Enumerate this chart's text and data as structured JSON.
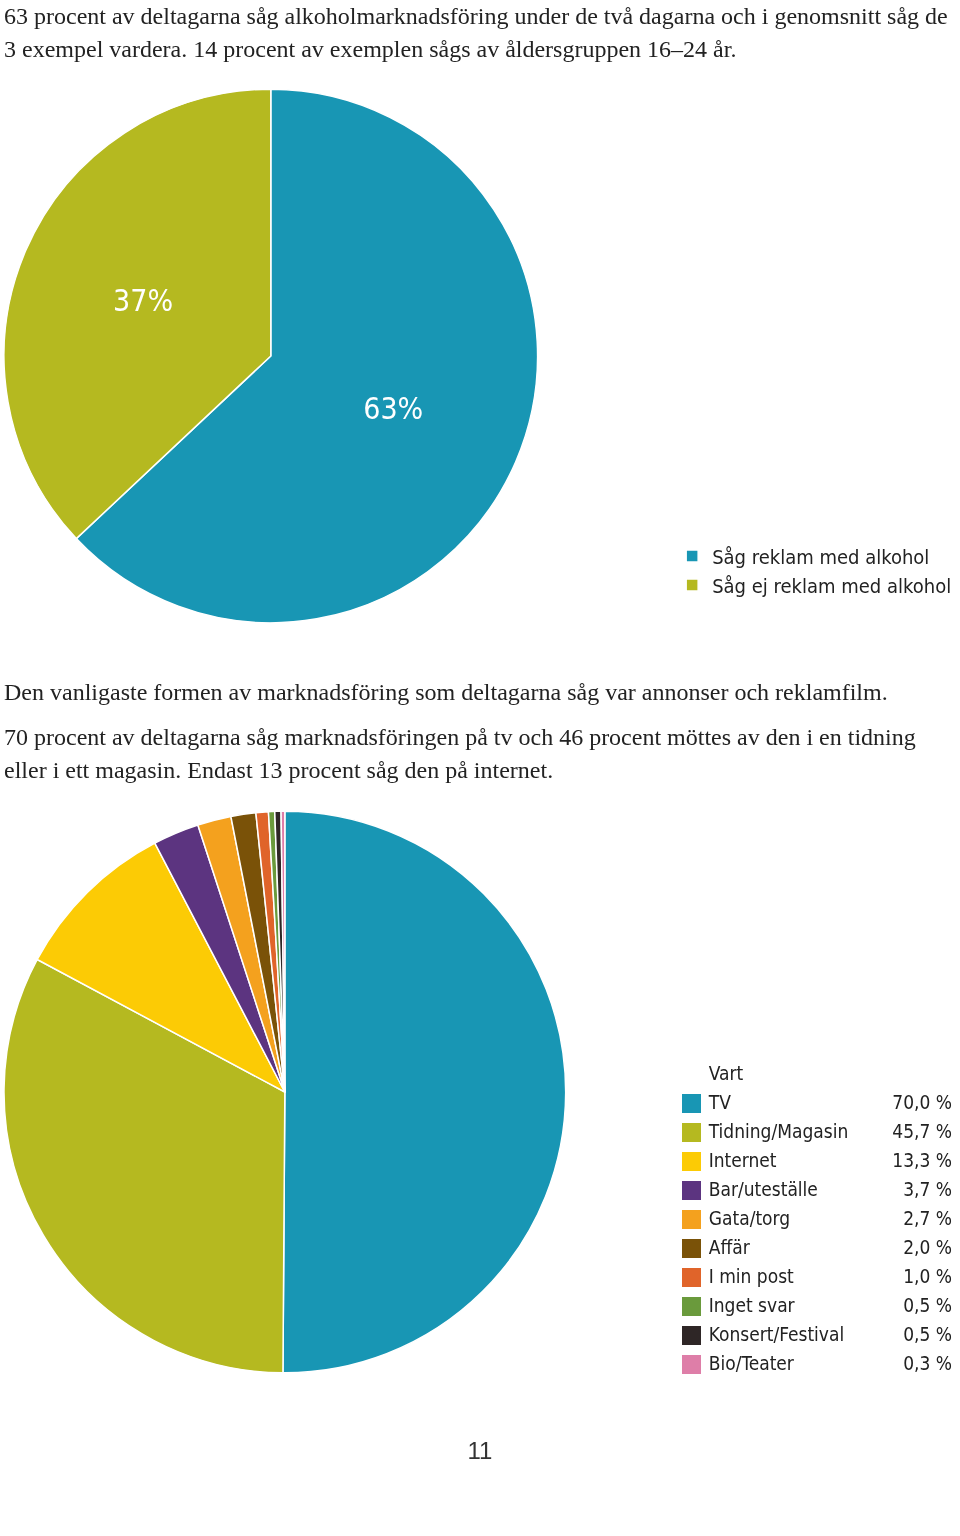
{
  "chart_data": [
    {
      "type": "pie",
      "title": "63 procent av deltagarna såg alkoholmarknadsföring under de två dagarna och i genomsnitt såg de 3 exempel vardera. 14 procent av exemplen sågs av åldersgruppen 16–24 år.",
      "categories": [
        "Såg reklam med alkohol",
        "Såg ej reklam med alkohol"
      ],
      "values": [
        63,
        37
      ],
      "colors": [
        "#1896b4",
        "#b5b920"
      ],
      "value_labels": [
        "63%",
        "37%"
      ],
      "legend": "bottom right"
    },
    {
      "type": "pie",
      "title": "Den vanligaste formen av marknadsföring som deltagarna såg var annonser och reklamfilm.",
      "subtitle": "70 procent av deltagarna såg marknadsföringen på tv och 46 procent möttes av den i en tidning eller i ett magasin. Endast 13 procent såg den på internet.",
      "legend_title": "Vart",
      "categories": [
        "TV",
        "Tidning/Magasin",
        "Internet",
        "Bar/uteställe",
        "Gata/torg",
        "Affär",
        "I min post",
        "Inget svar",
        "Konsert/Festival",
        "Bio/Teater"
      ],
      "values": [
        70.0,
        45.7,
        13.3,
        3.7,
        2.7,
        2.0,
        1.0,
        0.5,
        0.5,
        0.3
      ],
      "colors": [
        "#1896b4",
        "#b5b920",
        "#fccb05",
        "#5c3480",
        "#f4a11e",
        "#7a5208",
        "#e0642a",
        "#6a9a3c",
        "#2e2626",
        "#de7ea8"
      ],
      "value_labels": [
        "70,0 %",
        "45,7 %",
        "13,3 %",
        "3,7 %",
        "2,7 %",
        "2,0 %",
        "1,0 %",
        "0,5 %",
        "0,5 %",
        "0,3 %"
      ],
      "legend": "bottom right",
      "annotations": [
        "11"
      ]
    }
  ]
}
